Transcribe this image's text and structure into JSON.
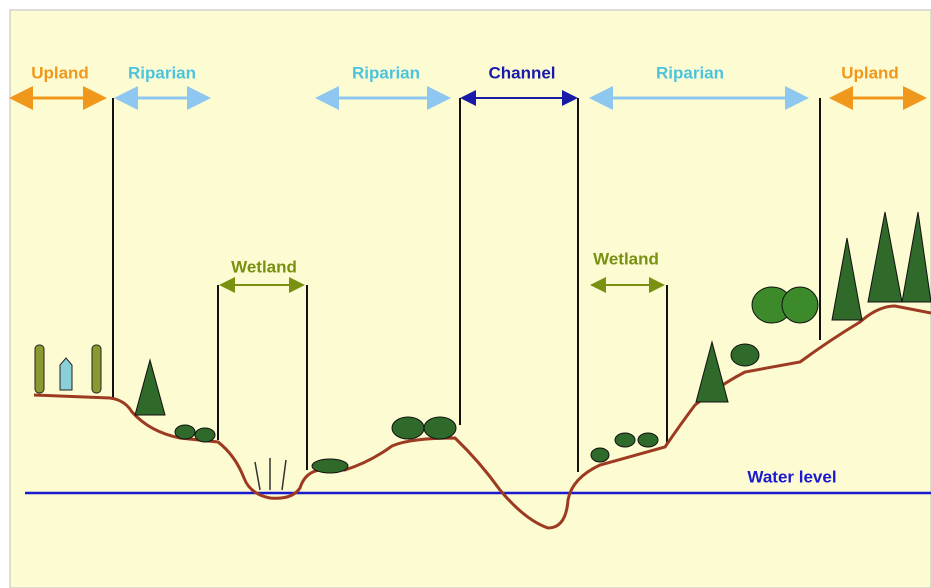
{
  "zones": [
    {
      "label": "Upland"
    },
    {
      "label": "Riparian"
    },
    {
      "label": "Riparian"
    },
    {
      "label": "Channel"
    },
    {
      "label": "Riparian"
    },
    {
      "label": "Upland"
    }
  ],
  "wetlands": [
    {
      "label": "Wetland"
    },
    {
      "label": "Wetland"
    }
  ],
  "water_level": {
    "label": "Water level"
  }
}
